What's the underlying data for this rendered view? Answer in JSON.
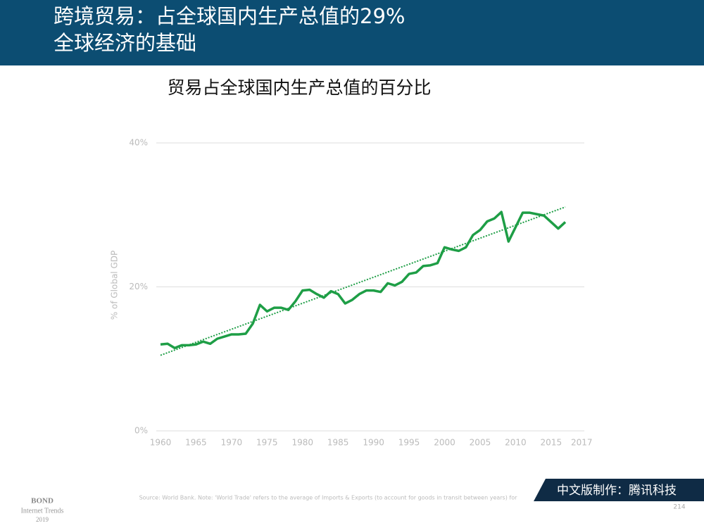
{
  "header": {
    "title_lines": [
      "跨境贸易：占全球国内生产总值的29%",
      "全球经济的基础"
    ]
  },
  "chart_data": {
    "type": "line",
    "title": "贸易占全球国内生产总值的百分比",
    "y_label": "% of  Global GDP",
    "x": [
      1960,
      1961,
      1962,
      1963,
      1964,
      1965,
      1966,
      1967,
      1968,
      1969,
      1970,
      1971,
      1972,
      1973,
      1974,
      1975,
      1976,
      1977,
      1978,
      1979,
      1980,
      1981,
      1982,
      1983,
      1984,
      1985,
      1986,
      1987,
      1988,
      1989,
      1990,
      1991,
      1992,
      1993,
      1994,
      1995,
      1996,
      1997,
      1998,
      1999,
      2000,
      2001,
      2002,
      2003,
      2004,
      2005,
      2006,
      2007,
      2008,
      2009,
      2010,
      2011,
      2012,
      2013,
      2014,
      2015,
      2016,
      2017
    ],
    "series": [
      {
        "color": "#1e9e46",
        "values": [
          12.0,
          12.1,
          11.5,
          11.9,
          11.9,
          12.0,
          12.4,
          12.1,
          12.8,
          13.1,
          13.4,
          13.4,
          13.5,
          14.9,
          17.5,
          16.6,
          17.1,
          17.1,
          16.8,
          18.0,
          19.5,
          19.6,
          19.0,
          18.5,
          19.4,
          19.0,
          17.7,
          18.2,
          19.0,
          19.5,
          19.5,
          19.3,
          20.5,
          20.2,
          20.7,
          21.8,
          22.0,
          22.9,
          23.0,
          23.3,
          25.5,
          25.2,
          25.0,
          25.5,
          27.2,
          27.9,
          29.1,
          29.5,
          30.4,
          26.3,
          28.3,
          30.3,
          30.3,
          30.1,
          29.9,
          29.0,
          28.1,
          29.0
        ]
      }
    ],
    "trendline": {
      "color": "#1e9e46",
      "x": [
        1960,
        2017
      ],
      "values": [
        10.5,
        31.1
      ]
    },
    "xlim": [
      1960,
      2017
    ],
    "xticks": [
      1960,
      1965,
      1970,
      1975,
      1980,
      1985,
      1990,
      1995,
      2000,
      2005,
      2010,
      2015,
      2017
    ],
    "ylim": [
      0,
      40
    ],
    "yticks": [
      {
        "value": 0,
        "label": "0%"
      },
      {
        "value": 20,
        "label": "20%"
      },
      {
        "value": 40,
        "label": "40%"
      }
    ],
    "grid": true
  },
  "footer": {
    "source": "Source: World Bank. Note: 'World Trade' refers to the average of Imports & Exports (to account for goods in transit between years) for",
    "brand": [
      "BOND",
      "Internet Trends",
      "2019"
    ],
    "credit": "中文版制作：腾讯科技",
    "page": "214"
  }
}
